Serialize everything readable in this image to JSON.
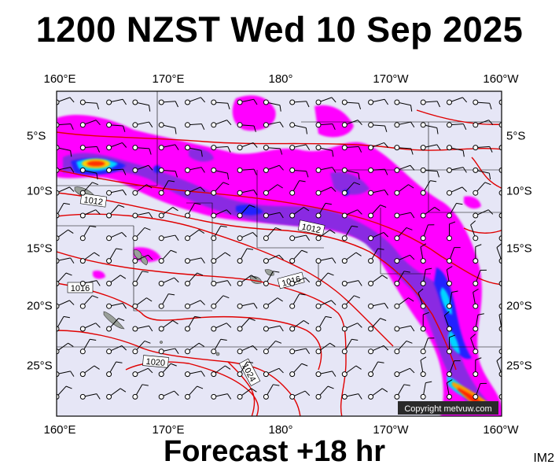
{
  "title": "1200 NZST Wed 10 Sep 2025",
  "subtitle": "Forecast +18 hr",
  "image_code": "IM2",
  "copyright": "Copyright metvuw.com",
  "lon_labels": [
    "160°E",
    "170°E",
    "180°",
    "170°W",
    "160°W"
  ],
  "lat_labels": [
    "5°S",
    "10°S",
    "15°S",
    "20°S",
    "25°S"
  ],
  "isobar_labels": [
    "1012",
    "1012",
    "1016",
    "1016",
    "1020",
    "1024"
  ],
  "colors": {
    "background": "#e6e6f6",
    "isobar": "#e00000",
    "rain_light": "#ff00ff",
    "rain_mid": "#8a2be2",
    "rain_heavy": "#0000ff",
    "rain_very_heavy": "#00ccff",
    "rain_extreme": "#ff3300",
    "land": "#9aa09a"
  }
}
